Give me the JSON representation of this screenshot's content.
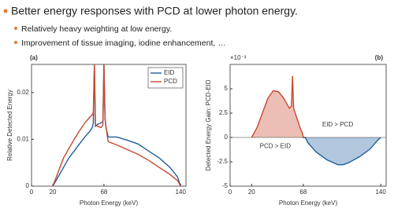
{
  "slide": {
    "bullet": "Better energy responses with PCD at lower photon energy.",
    "sub_bullets": [
      "Relatively heavy weighting at low energy.",
      "Improvement of tissue imaging, iodine enhancement, …"
    ]
  },
  "chart_data": [
    {
      "type": "line",
      "panel_label": "(a)",
      "xlabel": "Photon Energy (keV)",
      "ylabel": "Relative Detected Energy",
      "x": [
        20,
        25,
        30,
        35,
        40,
        45,
        50,
        55,
        57,
        58,
        59,
        60,
        62,
        65,
        67,
        68,
        69,
        70,
        72,
        80,
        90,
        100,
        110,
        120,
        130,
        137,
        140
      ],
      "series": [
        {
          "name": "EID",
          "color": "#1f5fa0",
          "values": [
            0,
            0.002,
            0.004,
            0.006,
            0.0075,
            0.009,
            0.0105,
            0.0118,
            0.0125,
            0.0135,
            0.026,
            0.0128,
            0.0132,
            0.0135,
            0.0138,
            0.026,
            0.0145,
            0.0125,
            0.0105,
            0.0105,
            0.0098,
            0.009,
            0.0075,
            0.006,
            0.004,
            0.002,
            0
          ]
        },
        {
          "name": "PCD",
          "color": "#c8472f",
          "values": [
            0,
            0.003,
            0.006,
            0.008,
            0.01,
            0.0118,
            0.0135,
            0.0148,
            0.0152,
            0.0158,
            0.026,
            0.013,
            0.0128,
            0.0125,
            0.013,
            0.026,
            0.0145,
            0.0125,
            0.0095,
            0.0088,
            0.0078,
            0.0068,
            0.0055,
            0.004,
            0.0025,
            0.0012,
            0
          ]
        }
      ],
      "xlim": [
        0,
        145
      ],
      "xticks": [
        0,
        20,
        68,
        140
      ],
      "ylim": [
        0,
        0.026
      ],
      "yticks": [
        0,
        0.01,
        0.02
      ],
      "legend": "upper right"
    },
    {
      "type": "area",
      "panel_label": "(b)",
      "xlabel": "Photon Energy (keV)",
      "ylabel": "Detected Energy Gain: PCD-EID",
      "y_multiplier": "×10⁻³",
      "annotations": [
        "EID > PCD",
        "PCD > EID"
      ],
      "x": [
        20,
        25,
        30,
        35,
        40,
        45,
        50,
        55,
        57,
        58,
        59,
        62,
        65,
        67,
        68,
        70,
        72,
        80,
        90,
        100,
        105,
        110,
        120,
        130,
        137,
        140
      ],
      "series": [
        {
          "name": "PCD-EID",
          "values": [
            0,
            1,
            2.5,
            4,
            4.8,
            4.7,
            4,
            3,
            3.2,
            6.3,
            3,
            2,
            1,
            0.5,
            0,
            0,
            -0.5,
            -1.5,
            -2.3,
            -2.8,
            -2.8,
            -2.6,
            -2,
            -1.2,
            -0.3,
            0
          ]
        }
      ],
      "positive_color": "#c8472f",
      "negative_color": "#1f5fa0",
      "xlim": [
        0,
        145
      ],
      "xticks": [
        0,
        20,
        68,
        140
      ],
      "ylim": [
        -5,
        7.5
      ],
      "yticks": [
        -5,
        -2.5,
        0,
        2.5,
        5
      ]
    }
  ]
}
